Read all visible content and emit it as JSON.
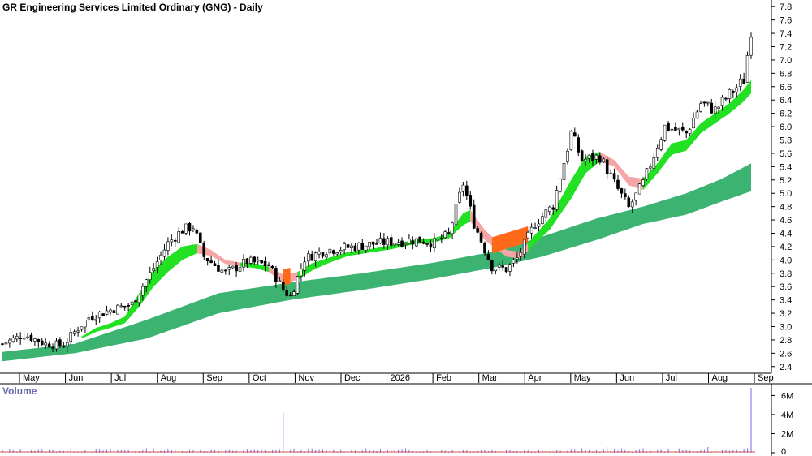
{
  "chart_data": {
    "type": "line",
    "title": "GR Engineering Services Limited Ordinary (GNG) - Daily",
    "price_axis": {
      "ticks": [
        "7.8",
        "7.6",
        "7.4",
        "7.2",
        "7.0",
        "6.8",
        "6.6",
        "6.4",
        "6.2",
        "6.0",
        "5.8",
        "5.6",
        "5.4",
        "5.2",
        "5.0",
        "4.8",
        "4.6",
        "4.4",
        "4.2",
        "4.0",
        "3.8",
        "3.6",
        "3.4",
        "3.2",
        "3.0",
        "2.8",
        "2.6",
        "2.4"
      ],
      "ylim": [
        2.3,
        7.9
      ]
    },
    "x_axis": {
      "labels": [
        "May",
        "Jun",
        "Jul",
        "Aug",
        "Sep",
        "Oct",
        "Nov",
        "Dec",
        "2026",
        "Feb",
        "Mar",
        "Apr",
        "May",
        "Jun",
        "Jul",
        "Aug",
        "Sep"
      ]
    },
    "price_series": {
      "name": "",
      "points": [
        [
          0,
          2.74
        ],
        [
          6,
          2.88
        ],
        [
          12,
          2.74
        ],
        [
          17,
          2.72
        ],
        [
          19,
          2.86
        ],
        [
          24,
          3.14
        ],
        [
          30,
          3.25
        ],
        [
          36,
          3.34
        ],
        [
          40,
          3.7
        ],
        [
          46,
          4.25
        ],
        [
          50,
          4.45
        ],
        [
          53,
          4.5
        ],
        [
          56,
          4.05
        ],
        [
          62,
          3.8
        ],
        [
          68,
          3.98
        ],
        [
          74,
          3.92
        ],
        [
          78,
          3.55
        ],
        [
          80,
          3.45
        ],
        [
          84,
          4.02
        ],
        [
          90,
          4.15
        ],
        [
          98,
          4.2
        ],
        [
          104,
          4.25
        ],
        [
          110,
          4.28
        ],
        [
          116,
          4.3
        ],
        [
          120,
          4.25
        ],
        [
          124,
          4.38
        ],
        [
          128,
          5.15
        ],
        [
          131,
          4.55
        ],
        [
          136,
          3.9
        ],
        [
          140,
          3.86
        ],
        [
          143,
          4.02
        ],
        [
          148,
          4.55
        ],
        [
          153,
          4.82
        ],
        [
          158,
          5.9
        ],
        [
          161,
          5.5
        ],
        [
          166,
          5.55
        ],
        [
          170,
          5.15
        ],
        [
          174,
          4.78
        ],
        [
          178,
          5.15
        ],
        [
          184,
          6.0
        ],
        [
          190,
          5.9
        ],
        [
          194,
          6.35
        ],
        [
          198,
          6.25
        ],
        [
          202,
          6.48
        ],
        [
          206,
          6.7
        ],
        [
          208,
          7.45
        ]
      ]
    },
    "ema_short": {
      "name": "",
      "upper": [
        [
          22,
          2.85
        ],
        [
          26,
          2.98
        ],
        [
          30,
          3.05
        ],
        [
          34,
          3.15
        ],
        [
          38,
          3.5
        ],
        [
          42,
          3.85
        ],
        [
          46,
          4.05
        ],
        [
          50,
          4.2
        ],
        [
          54,
          4.24
        ],
        [
          58,
          4.15
        ],
        [
          62,
          4.0
        ],
        [
          66,
          3.96
        ],
        [
          70,
          3.95
        ],
        [
          74,
          3.9
        ],
        [
          78,
          3.78
        ],
        [
          82,
          3.82
        ],
        [
          86,
          3.95
        ],
        [
          90,
          4.02
        ],
        [
          96,
          4.12
        ],
        [
          102,
          4.16
        ],
        [
          108,
          4.22
        ],
        [
          114,
          4.3
        ],
        [
          120,
          4.33
        ],
        [
          124,
          4.4
        ],
        [
          128,
          4.7
        ],
        [
          130,
          4.75
        ],
        [
          134,
          4.45
        ],
        [
          140,
          4.15
        ],
        [
          144,
          4.12
        ],
        [
          148,
          4.38
        ],
        [
          152,
          4.62
        ],
        [
          158,
          5.2
        ],
        [
          162,
          5.55
        ],
        [
          166,
          5.62
        ],
        [
          170,
          5.5
        ],
        [
          174,
          5.25
        ],
        [
          178,
          5.22
        ],
        [
          182,
          5.45
        ],
        [
          186,
          5.75
        ],
        [
          190,
          5.8
        ],
        [
          194,
          6.05
        ],
        [
          198,
          6.2
        ],
        [
          202,
          6.35
        ],
        [
          206,
          6.56
        ],
        [
          208,
          6.7
        ]
      ],
      "lower": [
        [
          22,
          2.82
        ],
        [
          26,
          2.92
        ],
        [
          30,
          2.98
        ],
        [
          34,
          3.05
        ],
        [
          38,
          3.3
        ],
        [
          42,
          3.6
        ],
        [
          46,
          3.82
        ],
        [
          50,
          4.0
        ],
        [
          54,
          4.1
        ],
        [
          58,
          4.06
        ],
        [
          62,
          3.94
        ],
        [
          66,
          3.9
        ],
        [
          70,
          3.88
        ],
        [
          74,
          3.82
        ],
        [
          78,
          3.65
        ],
        [
          82,
          3.7
        ],
        [
          86,
          3.84
        ],
        [
          90,
          3.94
        ],
        [
          96,
          4.06
        ],
        [
          102,
          4.11
        ],
        [
          108,
          4.16
        ],
        [
          114,
          4.23
        ],
        [
          120,
          4.27
        ],
        [
          124,
          4.32
        ],
        [
          128,
          4.52
        ],
        [
          130,
          4.58
        ],
        [
          134,
          4.3
        ],
        [
          140,
          4.05
        ],
        [
          144,
          4.02
        ],
        [
          148,
          4.25
        ],
        [
          152,
          4.45
        ],
        [
          158,
          4.92
        ],
        [
          162,
          5.3
        ],
        [
          166,
          5.48
        ],
        [
          170,
          5.4
        ],
        [
          174,
          5.12
        ],
        [
          178,
          5.05
        ],
        [
          182,
          5.3
        ],
        [
          186,
          5.58
        ],
        [
          190,
          5.64
        ],
        [
          194,
          5.9
        ],
        [
          198,
          6.05
        ],
        [
          202,
          6.2
        ],
        [
          206,
          6.38
        ],
        [
          208,
          6.5
        ]
      ]
    },
    "ema_long": {
      "name": "",
      "upper": [
        [
          0,
          2.62
        ],
        [
          20,
          2.74
        ],
        [
          40,
          3.1
        ],
        [
          60,
          3.5
        ],
        [
          80,
          3.66
        ],
        [
          100,
          3.8
        ],
        [
          120,
          3.96
        ],
        [
          136,
          4.12
        ],
        [
          150,
          4.35
        ],
        [
          165,
          4.62
        ],
        [
          178,
          4.8
        ],
        [
          190,
          5.0
        ],
        [
          200,
          5.22
        ],
        [
          208,
          5.45
        ]
      ],
      "lower": [
        [
          0,
          2.48
        ],
        [
          20,
          2.6
        ],
        [
          40,
          2.82
        ],
        [
          60,
          3.2
        ],
        [
          80,
          3.4
        ],
        [
          100,
          3.55
        ],
        [
          120,
          3.72
        ],
        [
          136,
          3.88
        ],
        [
          150,
          4.05
        ],
        [
          165,
          4.3
        ],
        [
          178,
          4.54
        ],
        [
          190,
          4.68
        ],
        [
          200,
          4.88
        ],
        [
          208,
          5.03
        ]
      ]
    },
    "bearish_bands": [
      [
        54,
        66
      ],
      [
        74,
        82
      ],
      [
        130,
        146
      ],
      [
        166,
        178
      ]
    ],
    "volume": {
      "label": "Volume",
      "ticks": [
        "6M",
        "4M",
        "2M",
        "0"
      ],
      "ylim": [
        0,
        6800000
      ],
      "spikes": [
        [
          78,
          4200000
        ],
        [
          168,
          600000
        ],
        [
          196,
          600000
        ],
        [
          208,
          6800000
        ]
      ]
    },
    "grid": false,
    "legend": "none"
  }
}
